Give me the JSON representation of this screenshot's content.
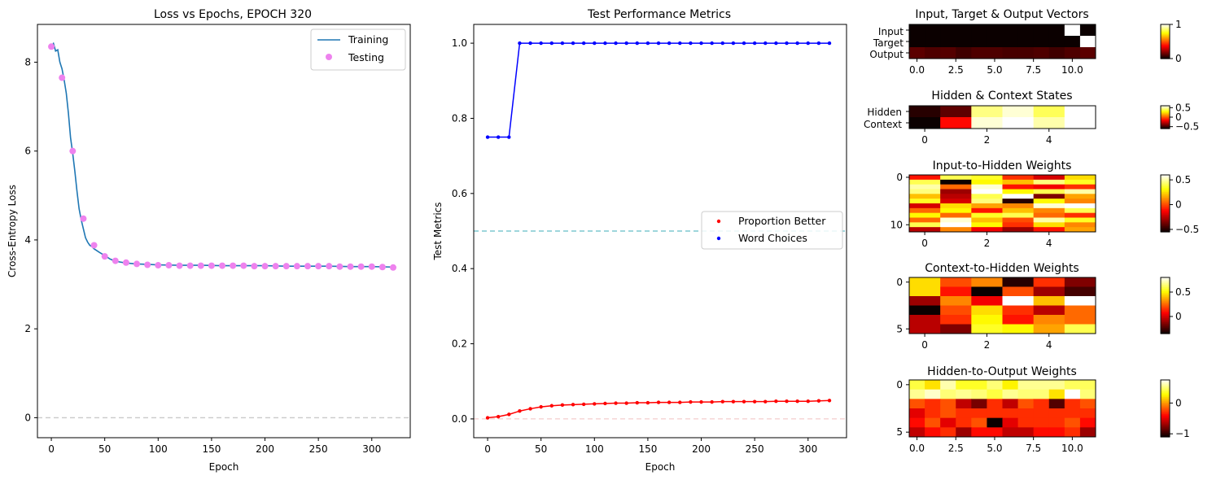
{
  "loss_chart": {
    "title": "Loss vs Epochs, EPOCH 320",
    "xlabel": "Epoch",
    "ylabel": "Cross-Entropy Loss",
    "legend": [
      "Training",
      "Testing"
    ]
  },
  "metrics_chart": {
    "title": "Test Performance Metrics",
    "xlabel": "Epoch",
    "ylabel": "Test Metrics",
    "legend": [
      "Proportion Better",
      "Word Choices"
    ]
  },
  "heatmaps": {
    "vectors_title": "Input, Target & Output Vectors",
    "vectors_rows": [
      "Input",
      "Target",
      "Output"
    ],
    "states_title": "Hidden & Context States",
    "states_rows": [
      "Hidden",
      "Context"
    ],
    "ih_title": "Input-to-Hidden Weights",
    "ch_title": "Context-to-Hidden Weights",
    "ho_title": "Hidden-to-Output Weights"
  },
  "colors": {
    "training": "#1f77b4",
    "testing": "#ee82ee",
    "proportion": "#ff0000",
    "word_choices": "#0000ff",
    "colormap": "hot"
  },
  "chart_data": [
    {
      "type": "line",
      "title": "Loss vs Epochs, EPOCH 320",
      "xlabel": "Epoch",
      "ylabel": "Cross-Entropy Loss",
      "xlim": [
        -13,
        336
      ],
      "ylim": [
        -0.45,
        8.85
      ],
      "xticks": [
        0,
        50,
        100,
        150,
        200,
        250,
        300
      ],
      "yticks": [
        0,
        2,
        4,
        6,
        8
      ],
      "hline": 0,
      "legend_position": "upper right",
      "series": [
        {
          "name": "Training",
          "kind": "line",
          "x": [
            0,
            2,
            4,
            6,
            8,
            10,
            12,
            14,
            16,
            18,
            20,
            22,
            24,
            26,
            28,
            30,
            32,
            34,
            36,
            38,
            40,
            45,
            50,
            55,
            60,
            70,
            80,
            90,
            100,
            120,
            140,
            160,
            180,
            200,
            220,
            240,
            260,
            280,
            300,
            320
          ],
          "y": [
            8.35,
            8.42,
            8.25,
            8.28,
            8.0,
            7.85,
            7.6,
            7.3,
            6.85,
            6.3,
            5.95,
            5.55,
            5.1,
            4.7,
            4.45,
            4.25,
            4.05,
            3.95,
            3.88,
            3.85,
            3.8,
            3.72,
            3.65,
            3.57,
            3.52,
            3.48,
            3.46,
            3.45,
            3.44,
            3.43,
            3.43,
            3.42,
            3.42,
            3.42,
            3.41,
            3.41,
            3.41,
            3.4,
            3.4,
            3.39
          ]
        },
        {
          "name": "Testing",
          "kind": "scatter",
          "x": [
            0,
            10,
            20,
            30,
            40,
            50,
            60,
            70,
            80,
            90,
            100,
            110,
            120,
            130,
            140,
            150,
            160,
            170,
            180,
            190,
            200,
            210,
            220,
            230,
            240,
            250,
            260,
            270,
            280,
            290,
            300,
            310,
            320
          ],
          "y": [
            8.35,
            7.65,
            6.0,
            4.48,
            3.88,
            3.63,
            3.53,
            3.49,
            3.46,
            3.44,
            3.43,
            3.43,
            3.42,
            3.42,
            3.42,
            3.42,
            3.42,
            3.42,
            3.42,
            3.41,
            3.41,
            3.41,
            3.41,
            3.41,
            3.41,
            3.41,
            3.41,
            3.4,
            3.4,
            3.4,
            3.4,
            3.39,
            3.38
          ]
        }
      ]
    },
    {
      "type": "line",
      "title": "Test Performance Metrics",
      "xlabel": "Epoch",
      "ylabel": "Test Metrics",
      "xlim": [
        -13,
        336
      ],
      "ylim": [
        -0.05,
        1.05
      ],
      "xticks": [
        0,
        50,
        100,
        150,
        200,
        250,
        300
      ],
      "yticks": [
        0.0,
        0.2,
        0.4,
        0.6,
        0.8,
        1.0
      ],
      "hlines": [
        0.5,
        0.0
      ],
      "legend_position": "center right",
      "series": [
        {
          "name": "Proportion Better",
          "x": [
            0,
            10,
            20,
            30,
            40,
            50,
            60,
            70,
            80,
            90,
            100,
            110,
            120,
            130,
            140,
            150,
            160,
            170,
            180,
            190,
            200,
            210,
            220,
            230,
            240,
            250,
            260,
            270,
            280,
            290,
            300,
            310,
            320
          ],
          "y": [
            0.003,
            0.006,
            0.012,
            0.021,
            0.027,
            0.032,
            0.035,
            0.037,
            0.038,
            0.039,
            0.04,
            0.041,
            0.042,
            0.042,
            0.043,
            0.043,
            0.044,
            0.044,
            0.044,
            0.045,
            0.045,
            0.045,
            0.046,
            0.046,
            0.046,
            0.046,
            0.046,
            0.047,
            0.047,
            0.047,
            0.047,
            0.048,
            0.049
          ]
        },
        {
          "name": "Word Choices",
          "x": [
            0,
            10,
            20,
            30,
            40,
            50,
            60,
            70,
            80,
            90,
            100,
            110,
            120,
            130,
            140,
            150,
            160,
            170,
            180,
            190,
            200,
            210,
            220,
            230,
            240,
            250,
            260,
            270,
            280,
            290,
            300,
            310,
            320
          ],
          "y": [
            0.75,
            0.75,
            0.75,
            1.0,
            1.0,
            1.0,
            1.0,
            1.0,
            1.0,
            1.0,
            1.0,
            1.0,
            1.0,
            1.0,
            1.0,
            1.0,
            1.0,
            1.0,
            1.0,
            1.0,
            1.0,
            1.0,
            1.0,
            1.0,
            1.0,
            1.0,
            1.0,
            1.0,
            1.0,
            1.0,
            1.0,
            1.0,
            1.0
          ]
        }
      ]
    },
    {
      "type": "heatmap",
      "title": "Input, Target & Output Vectors",
      "rows": [
        "Input",
        "Target",
        "Output"
      ],
      "xticks": [
        0.0,
        2.5,
        5.0,
        7.5,
        10.0
      ],
      "colorbar": {
        "min": 0,
        "max": 1,
        "ticks": [
          0,
          1
        ]
      },
      "values": [
        [
          0,
          0,
          0,
          0,
          0,
          0,
          0,
          0,
          0,
          0,
          1,
          0
        ],
        [
          0,
          0,
          0,
          0,
          0,
          0,
          0,
          0,
          0,
          0,
          0,
          1
        ],
        [
          0.12,
          0.1,
          0.11,
          0.08,
          0.1,
          0.1,
          0.09,
          0.09,
          0.1,
          0.08,
          0.1,
          0.12
        ]
      ]
    },
    {
      "type": "heatmap",
      "title": "Hidden & Context States",
      "rows": [
        "Hidden",
        "Context"
      ],
      "xticks": [
        0,
        2,
        4
      ],
      "colorbar": {
        "min": -0.6,
        "max": 0.6,
        "ticks": [
          0.5,
          0.0,
          -0.5
        ]
      },
      "values": [
        [
          -0.55,
          -0.45,
          0.45,
          0.55,
          0.4,
          0.6
        ],
        [
          -0.6,
          -0.15,
          0.55,
          0.6,
          0.5,
          0.6
        ]
      ]
    },
    {
      "type": "heatmap",
      "title": "Input-to-Hidden Weights",
      "yticks": [
        0,
        10
      ],
      "xticks": [
        0,
        2,
        4
      ],
      "colorbar": {
        "min": -0.55,
        "max": 0.6,
        "ticks": [
          0.5,
          0.0,
          -0.5
        ]
      },
      "values": [
        [
          -0.1,
          0.4,
          0.35,
          -0.05,
          -0.2,
          0.25
        ],
        [
          0.4,
          -0.55,
          0.3,
          0.2,
          0.45,
          0.35
        ],
        [
          0.5,
          0.05,
          0.55,
          -0.1,
          -0.15,
          -0.05
        ],
        [
          0.45,
          -0.3,
          0.6,
          0.3,
          0.4,
          0.5
        ],
        [
          0.2,
          -0.25,
          0.4,
          0.6,
          -0.35,
          0.15
        ],
        [
          0.35,
          -0.2,
          0.45,
          -0.5,
          0.3,
          0.1
        ],
        [
          -0.2,
          0.25,
          0.15,
          0.1,
          0.55,
          0.6
        ],
        [
          0.05,
          0.3,
          -0.1,
          0.2,
          0.1,
          0.4
        ],
        [
          0.3,
          0.05,
          0.35,
          0.4,
          0.05,
          -0.05
        ],
        [
          0.05,
          0.55,
          0.2,
          0.0,
          0.5,
          0.35
        ],
        [
          0.4,
          0.6,
          0.3,
          -0.05,
          0.25,
          0.1
        ],
        [
          -0.25,
          0.1,
          -0.15,
          -0.3,
          -0.1,
          0.15
        ]
      ]
    },
    {
      "type": "heatmap",
      "title": "Context-to-Hidden Weights",
      "yticks": [
        0,
        5
      ],
      "xticks": [
        0,
        2,
        4
      ],
      "colorbar": {
        "min": -0.35,
        "max": 0.8,
        "ticks": [
          0.5,
          0.0
        ]
      },
      "values": [
        [
          0.45,
          0.2,
          0.3,
          -0.3,
          0.15,
          -0.15
        ],
        [
          0.45,
          0.1,
          -0.35,
          0.2,
          -0.1,
          -0.25
        ],
        [
          -0.1,
          0.3,
          0.05,
          0.8,
          0.4,
          0.8
        ],
        [
          -0.35,
          0.2,
          0.45,
          0.15,
          -0.05,
          0.25
        ],
        [
          -0.05,
          0.15,
          0.5,
          0.1,
          0.3,
          0.25
        ],
        [
          -0.05,
          -0.15,
          0.55,
          0.5,
          0.35,
          0.6
        ]
      ]
    },
    {
      "type": "heatmap",
      "title": "Hidden-to-Output Weights",
      "yticks": [
        0,
        5
      ],
      "xticks": [
        0.0,
        2.5,
        5.0,
        7.5,
        10.0
      ],
      "colorbar": {
        "min": -1.1,
        "max": 0.75,
        "ticks": [
          0,
          -1
        ]
      },
      "values": [
        [
          0.4,
          0.2,
          0.6,
          0.35,
          0.35,
          0.5,
          0.25,
          0.55,
          0.55,
          0.55,
          0.45,
          0.45
        ],
        [
          0.55,
          0.65,
          0.5,
          0.55,
          0.5,
          0.4,
          0.55,
          0.5,
          0.5,
          0.2,
          0.75,
          0.5
        ],
        [
          -0.2,
          -0.3,
          -0.2,
          -0.6,
          -0.8,
          -0.3,
          -0.6,
          -0.2,
          -0.3,
          -0.9,
          -0.3,
          -0.2
        ],
        [
          -0.5,
          -0.3,
          -0.2,
          -0.3,
          -0.3,
          -0.3,
          -0.3,
          -0.3,
          -0.3,
          -0.3,
          -0.3,
          -0.3
        ],
        [
          -0.4,
          -0.2,
          -0.5,
          -0.3,
          -0.2,
          -1.1,
          -0.5,
          -0.3,
          -0.3,
          -0.3,
          -0.2,
          -0.4
        ],
        [
          -0.6,
          -0.4,
          -0.3,
          -0.7,
          -0.4,
          -0.4,
          -0.6,
          -0.6,
          -0.4,
          -0.4,
          -0.3,
          -0.7
        ]
      ]
    }
  ]
}
